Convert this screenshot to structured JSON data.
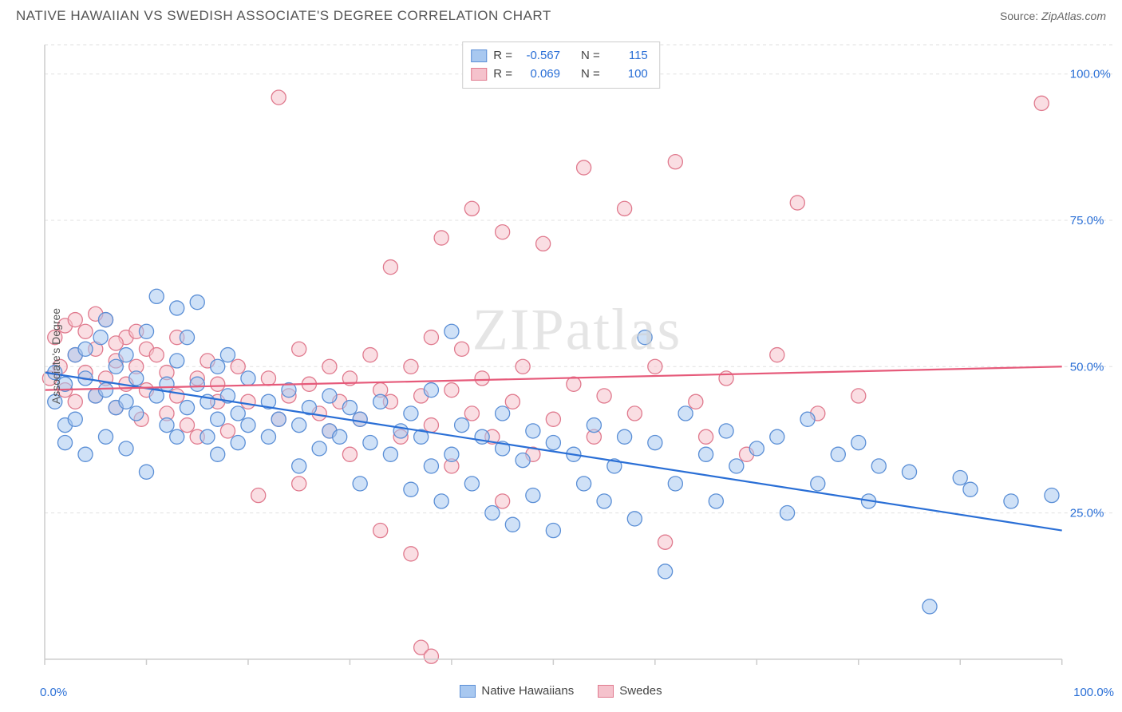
{
  "header": {
    "title": "NATIVE HAWAIIAN VS SWEDISH ASSOCIATE'S DEGREE CORRELATION CHART",
    "source_label": "Source:",
    "source_value": "ZipAtlas.com"
  },
  "watermark": "ZIPatlas",
  "chart": {
    "type": "scatter",
    "ylabel": "Associate's Degree",
    "xlim": [
      0,
      100
    ],
    "ylim": [
      0,
      105
    ],
    "xticks": [
      0,
      10,
      20,
      30,
      40,
      50,
      60,
      70,
      80,
      90,
      100
    ],
    "yticks_major": [
      25,
      50,
      75,
      100
    ],
    "ytick_labels": [
      "25.0%",
      "50.0%",
      "75.0%",
      "100.0%"
    ],
    "x_axis_labels": [
      "0.0%",
      "100.0%"
    ],
    "background_color": "#ffffff",
    "grid_color": "#e0e0e0",
    "axis_color": "#cccccc",
    "tick_text_color": "#2a6fd6",
    "label_fontsize": 14,
    "tick_fontsize": 15,
    "marker_radius": 9,
    "marker_stroke_width": 1.3,
    "trendline_width": 2.2,
    "series": [
      {
        "name": "Native Hawaiians",
        "fill": "#a8c8f0",
        "stroke": "#5b8fd6",
        "fill_opacity": 0.55,
        "trend": {
          "x1": 0,
          "y1": 49,
          "x2": 100,
          "y2": 22,
          "color": "#2a6fd6"
        },
        "points": [
          [
            1,
            49
          ],
          [
            1,
            44
          ],
          [
            2,
            40
          ],
          [
            2,
            47
          ],
          [
            3,
            52
          ],
          [
            3,
            41
          ],
          [
            4,
            35
          ],
          [
            4,
            48
          ],
          [
            5,
            45
          ],
          [
            5.5,
            55
          ],
          [
            6,
            46
          ],
          [
            6,
            38
          ],
          [
            7,
            50
          ],
          [
            7,
            43
          ],
          [
            8,
            52
          ],
          [
            8,
            36
          ],
          [
            9,
            48
          ],
          [
            9,
            42
          ],
          [
            10,
            56
          ],
          [
            10,
            32
          ],
          [
            11,
            62
          ],
          [
            11,
            45
          ],
          [
            12,
            47
          ],
          [
            12,
            40
          ],
          [
            13,
            51
          ],
          [
            13,
            38
          ],
          [
            14,
            55
          ],
          [
            14,
            43
          ],
          [
            15,
            47
          ],
          [
            15,
            61
          ],
          [
            16,
            44
          ],
          [
            16,
            38
          ],
          [
            17,
            50
          ],
          [
            17,
            35
          ],
          [
            18,
            45
          ],
          [
            18,
            52
          ],
          [
            19,
            42
          ],
          [
            19,
            37
          ],
          [
            20,
            48
          ],
          [
            20,
            40
          ],
          [
            22,
            38
          ],
          [
            22,
            44
          ],
          [
            23,
            41
          ],
          [
            24,
            46
          ],
          [
            25,
            40
          ],
          [
            25,
            33
          ],
          [
            26,
            43
          ],
          [
            27,
            36
          ],
          [
            28,
            39
          ],
          [
            28,
            45
          ],
          [
            29,
            38
          ],
          [
            30,
            43
          ],
          [
            31,
            30
          ],
          [
            31,
            41
          ],
          [
            32,
            37
          ],
          [
            33,
            44
          ],
          [
            34,
            35
          ],
          [
            35,
            39
          ],
          [
            36,
            42
          ],
          [
            36,
            29
          ],
          [
            37,
            38
          ],
          [
            38,
            33
          ],
          [
            38,
            46
          ],
          [
            39,
            27
          ],
          [
            40,
            56
          ],
          [
            40,
            35
          ],
          [
            41,
            40
          ],
          [
            42,
            30
          ],
          [
            43,
            38
          ],
          [
            44,
            25
          ],
          [
            45,
            36
          ],
          [
            45,
            42
          ],
          [
            46,
            23
          ],
          [
            47,
            34
          ],
          [
            48,
            39
          ],
          [
            48,
            28
          ],
          [
            50,
            37
          ],
          [
            50,
            22
          ],
          [
            52,
            35
          ],
          [
            53,
            30
          ],
          [
            54,
            40
          ],
          [
            55,
            27
          ],
          [
            56,
            33
          ],
          [
            57,
            38
          ],
          [
            58,
            24
          ],
          [
            59,
            55
          ],
          [
            60,
            37
          ],
          [
            61,
            15
          ],
          [
            62,
            30
          ],
          [
            63,
            42
          ],
          [
            65,
            35
          ],
          [
            66,
            27
          ],
          [
            67,
            39
          ],
          [
            68,
            33
          ],
          [
            70,
            36
          ],
          [
            72,
            38
          ],
          [
            73,
            25
          ],
          [
            75,
            41
          ],
          [
            76,
            30
          ],
          [
            78,
            35
          ],
          [
            80,
            37
          ],
          [
            81,
            27
          ],
          [
            82,
            33
          ],
          [
            85,
            32
          ],
          [
            87,
            9
          ],
          [
            90,
            31
          ],
          [
            91,
            29
          ],
          [
            95,
            27
          ],
          [
            99,
            28
          ],
          [
            2,
            37
          ],
          [
            4,
            53
          ],
          [
            6,
            58
          ],
          [
            8,
            44
          ],
          [
            13,
            60
          ],
          [
            17,
            41
          ]
        ]
      },
      {
        "name": "Swedes",
        "fill": "#f5c2cc",
        "stroke": "#e07a8e",
        "fill_opacity": 0.55,
        "trend": {
          "x1": 0,
          "y1": 46,
          "x2": 100,
          "y2": 50,
          "color": "#e65a7a"
        },
        "points": [
          [
            0.5,
            48
          ],
          [
            1,
            55
          ],
          [
            1.5,
            50
          ],
          [
            2,
            46
          ],
          [
            2,
            57
          ],
          [
            3,
            52
          ],
          [
            3,
            44
          ],
          [
            4,
            56
          ],
          [
            4,
            49
          ],
          [
            5,
            53
          ],
          [
            5,
            45
          ],
          [
            6,
            58
          ],
          [
            6,
            48
          ],
          [
            7,
            51
          ],
          [
            7,
            43
          ],
          [
            8,
            55
          ],
          [
            8,
            47
          ],
          [
            9,
            50
          ],
          [
            9.5,
            41
          ],
          [
            10,
            53
          ],
          [
            10,
            46
          ],
          [
            11,
            52
          ],
          [
            12,
            42
          ],
          [
            12,
            49
          ],
          [
            13,
            45
          ],
          [
            13,
            55
          ],
          [
            14,
            40
          ],
          [
            15,
            48
          ],
          [
            15,
            38
          ],
          [
            16,
            51
          ],
          [
            17,
            44
          ],
          [
            17,
            47
          ],
          [
            18,
            39
          ],
          [
            19,
            50
          ],
          [
            20,
            44
          ],
          [
            21,
            28
          ],
          [
            22,
            48
          ],
          [
            23,
            41
          ],
          [
            24,
            45
          ],
          [
            25,
            53
          ],
          [
            25,
            30
          ],
          [
            26,
            47
          ],
          [
            27,
            42
          ],
          [
            28,
            39
          ],
          [
            28,
            50
          ],
          [
            29,
            44
          ],
          [
            30,
            35
          ],
          [
            30,
            48
          ],
          [
            31,
            41
          ],
          [
            32,
            52
          ],
          [
            33,
            46
          ],
          [
            33,
            22
          ],
          [
            34,
            67
          ],
          [
            34,
            44
          ],
          [
            35,
            38
          ],
          [
            36,
            50
          ],
          [
            36,
            18
          ],
          [
            37,
            45
          ],
          [
            38,
            55
          ],
          [
            38,
            40
          ],
          [
            39,
            72
          ],
          [
            40,
            46
          ],
          [
            40,
            33
          ],
          [
            41,
            53
          ],
          [
            42,
            77
          ],
          [
            42,
            42
          ],
          [
            43,
            48
          ],
          [
            44,
            38
          ],
          [
            45,
            73
          ],
          [
            46,
            44
          ],
          [
            47,
            50
          ],
          [
            48,
            35
          ],
          [
            49,
            71
          ],
          [
            50,
            41
          ],
          [
            52,
            47
          ],
          [
            53,
            84
          ],
          [
            54,
            38
          ],
          [
            55,
            45
          ],
          [
            57,
            77
          ],
          [
            58,
            42
          ],
          [
            60,
            50
          ],
          [
            61,
            20
          ],
          [
            62,
            85
          ],
          [
            64,
            44
          ],
          [
            65,
            38
          ],
          [
            67,
            48
          ],
          [
            69,
            35
          ],
          [
            72,
            52
          ],
          [
            74,
            78
          ],
          [
            76,
            42
          ],
          [
            80,
            45
          ],
          [
            23,
            96
          ],
          [
            37,
            2
          ],
          [
            38,
            0.5
          ],
          [
            98,
            95
          ],
          [
            5,
            59
          ],
          [
            9,
            56
          ],
          [
            3,
            58
          ],
          [
            7,
            54
          ],
          [
            45,
            27
          ]
        ]
      }
    ]
  },
  "stats": {
    "rows": [
      {
        "swatch_fill": "#a8c8f0",
        "swatch_stroke": "#5b8fd6",
        "r_label": "R =",
        "r_val": "-0.567",
        "n_label": "N =",
        "n_val": "115"
      },
      {
        "swatch_fill": "#f5c2cc",
        "swatch_stroke": "#e07a8e",
        "r_label": "R =",
        "r_val": "0.069",
        "n_label": "N =",
        "n_val": "100"
      }
    ]
  }
}
